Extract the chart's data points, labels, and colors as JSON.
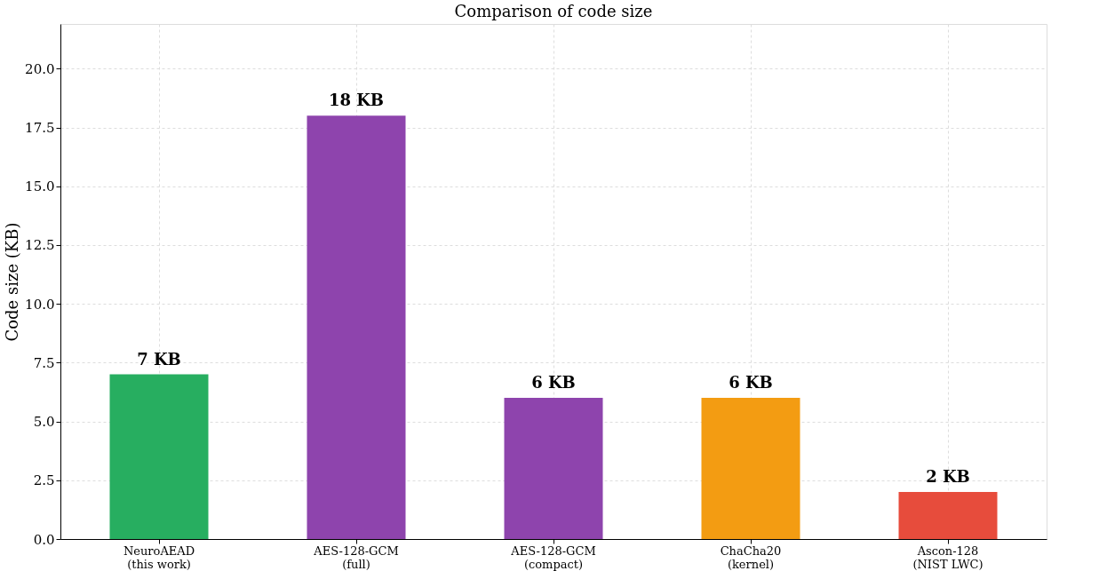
{
  "chart_data": {
    "type": "bar",
    "title": "Comparison of code size",
    "ylabel": "Code size (KB)",
    "categories": [
      "NeuroAEAD\n(this work)",
      "AES-128-GCM\n(full)",
      "AES-128-GCM\n(compact)",
      "ChaCha20\n(kernel)",
      "Ascon-128\n(NIST LWC)"
    ],
    "values": [
      7,
      18,
      6,
      6,
      2
    ],
    "colors": [
      "#27ae60",
      "#8e44ad",
      "#8e44ad",
      "#f39c12",
      "#e74c3c"
    ],
    "value_labels": [
      "7 KB",
      "18 KB",
      "6 KB",
      "6 KB",
      "2 KB"
    ],
    "ylim": [
      0,
      21.9
    ],
    "yticks": [
      {
        "value": 0,
        "label": "0.0"
      },
      2.5,
      {
        "value": 5,
        "label": "5.0"
      },
      7.5,
      {
        "value": 10,
        "label": "10.0"
      },
      12.5,
      {
        "value": 15,
        "label": "15.0"
      },
      17.5,
      {
        "value": 20,
        "label": "20.0"
      }
    ],
    "grid": true
  }
}
